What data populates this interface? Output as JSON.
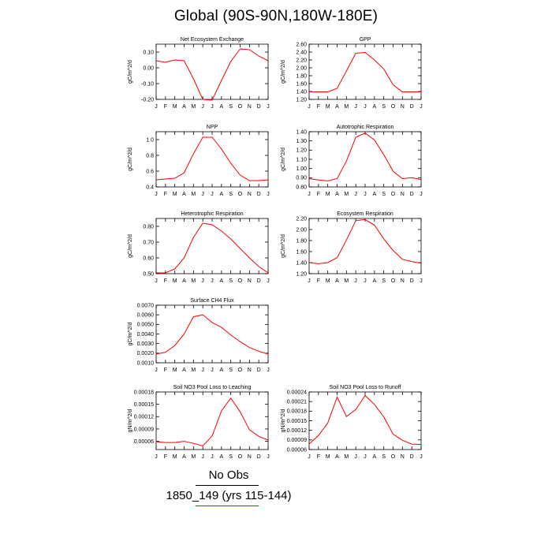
{
  "page": {
    "title": "Global (90S-90N,180W-180E)"
  },
  "legend": {
    "obs_label": "No Obs",
    "case_label": "1850_149 (yrs 115-144)",
    "obs_color": "#000000",
    "case_color": "#ff0000"
  },
  "months": [
    "J",
    "F",
    "M",
    "A",
    "M",
    "J",
    "J",
    "A",
    "S",
    "O",
    "N",
    "D",
    "J"
  ],
  "chart_data": [
    {
      "type": "line",
      "title": "Net Ecosystem Exchange",
      "ylabel": "gC/m^2/d",
      "ylim": [
        -0.2,
        0.15
      ],
      "yticks": [
        -0.2,
        -0.1,
        0.0,
        0.1
      ],
      "ytick_labels": [
        "-0.20",
        "-0.10",
        "0.00",
        "0.10"
      ],
      "series": [
        {
          "values": [
            0.045,
            0.035,
            0.05,
            0.045,
            -0.07,
            -0.2,
            -0.205,
            -0.08,
            0.04,
            0.12,
            0.115,
            0.075,
            0.045
          ]
        }
      ]
    },
    {
      "type": "line",
      "title": "GPP",
      "ylabel": "gC/m^2/d",
      "ylim": [
        1.2,
        2.6
      ],
      "yticks": [
        1.2,
        1.4,
        1.6,
        1.8,
        2.0,
        2.2,
        2.4,
        2.6
      ],
      "ytick_labels": [
        "1.20",
        "1.40",
        "1.60",
        "1.80",
        "2.00",
        "2.20",
        "2.40",
        "2.60"
      ],
      "series": [
        {
          "values": [
            1.39,
            1.39,
            1.39,
            1.48,
            1.92,
            2.37,
            2.39,
            2.2,
            1.97,
            1.57,
            1.39,
            1.39,
            1.39
          ]
        }
      ]
    },
    {
      "type": "line",
      "title": "NPP",
      "ylabel": "gC/m^2/d",
      "ylim": [
        0.4,
        1.1
      ],
      "yticks": [
        0.4,
        0.6,
        0.8,
        1.0
      ],
      "ytick_labels": [
        "0.4",
        "0.6",
        "0.8",
        "1.0"
      ],
      "series": [
        {
          "values": [
            0.49,
            0.5,
            0.51,
            0.58,
            0.82,
            1.03,
            1.03,
            0.88,
            0.7,
            0.55,
            0.48,
            0.48,
            0.49
          ]
        }
      ]
    },
    {
      "type": "line",
      "title": "Autotrophic Respiration",
      "ylabel": "gC/m^2/d",
      "ylim": [
        0.8,
        1.4
      ],
      "yticks": [
        0.8,
        0.9,
        1.0,
        1.1,
        1.2,
        1.3,
        1.4
      ],
      "ytick_labels": [
        "0.80",
        "0.90",
        "1.00",
        "1.10",
        "1.20",
        "1.30",
        "1.40"
      ],
      "series": [
        {
          "values": [
            0.89,
            0.875,
            0.865,
            0.89,
            1.08,
            1.34,
            1.385,
            1.31,
            1.15,
            0.97,
            0.89,
            0.9,
            0.88
          ]
        }
      ]
    },
    {
      "type": "line",
      "title": "Heterotrophic Respiration",
      "ylabel": "gC/m^2/d",
      "ylim": [
        0.5,
        0.85
      ],
      "yticks": [
        0.5,
        0.6,
        0.7,
        0.8
      ],
      "ytick_labels": [
        "0.50",
        "0.60",
        "0.70",
        "0.80"
      ],
      "series": [
        {
          "values": [
            0.505,
            0.505,
            0.53,
            0.6,
            0.73,
            0.82,
            0.81,
            0.77,
            0.72,
            0.66,
            0.6,
            0.545,
            0.505
          ]
        }
      ]
    },
    {
      "type": "line",
      "title": "Ecosystem Respiration",
      "ylabel": "gC/m^2/d",
      "ylim": [
        1.2,
        2.2
      ],
      "yticks": [
        1.2,
        1.4,
        1.6,
        1.8,
        2.0,
        2.2
      ],
      "ytick_labels": [
        "1.20",
        "1.40",
        "1.60",
        "1.80",
        "2.00",
        "2.20"
      ],
      "series": [
        {
          "values": [
            1.4,
            1.38,
            1.4,
            1.49,
            1.81,
            2.16,
            2.18,
            2.08,
            1.83,
            1.62,
            1.46,
            1.42,
            1.39
          ]
        }
      ]
    },
    {
      "type": "line",
      "title": "Surface CH4 Flux",
      "ylabel": "gC/m^2/d",
      "ylim": [
        0.001,
        0.007
      ],
      "yticks": [
        0.001,
        0.002,
        0.003,
        0.004,
        0.005,
        0.006,
        0.007
      ],
      "ytick_labels": [
        "0.0010",
        "0.0020",
        "0.0030",
        "0.0040",
        "0.0050",
        "0.0060",
        "0.0070"
      ],
      "series": [
        {
          "values": [
            0.0019,
            0.0021,
            0.0028,
            0.004,
            0.0058,
            0.006,
            0.0052,
            0.0047,
            0.0039,
            0.0032,
            0.0026,
            0.0022,
            0.0019
          ]
        }
      ]
    },
    {
      "type": "line",
      "title": "Soil NO3 Pool Loss to Leaching",
      "ylabel": "gN/m^2/d",
      "ylim": [
        4e-05,
        0.00018
      ],
      "yticks": [
        6e-05,
        9e-05,
        0.00012,
        0.00015,
        0.00018
      ],
      "ytick_labels": [
        "0.00006",
        "0.00009",
        "0.00012",
        "0.00015",
        "0.00018"
      ],
      "series": [
        {
          "values": [
            5.9e-05,
            5.7e-05,
            5.7e-05,
            6e-05,
            5.5e-05,
            4.9e-05,
            7.3e-05,
            0.000134,
            0.000165,
            0.000132,
            8.8e-05,
            7.2e-05,
            6.3e-05
          ]
        }
      ]
    },
    {
      "type": "line",
      "title": "Soil NO3 Pool Loss to Runoff",
      "ylabel": "gN/m^2/d",
      "ylim": [
        6e-05,
        0.00024
      ],
      "yticks": [
        6e-05,
        9e-05,
        0.00012,
        0.00015,
        0.00018,
        0.00021,
        0.00024
      ],
      "ytick_labels": [
        "0.00006",
        "0.00009",
        "0.00012",
        "0.00015",
        "0.00018",
        "0.00021",
        "0.00024"
      ],
      "series": [
        {
          "values": [
            7.7e-05,
            0.000104,
            0.000143,
            0.000224,
            0.000163,
            0.000185,
            0.000229,
            0.000201,
            0.000162,
            0.000108,
            8.9e-05,
            7.7e-05,
            7.6e-05
          ]
        }
      ]
    }
  ]
}
